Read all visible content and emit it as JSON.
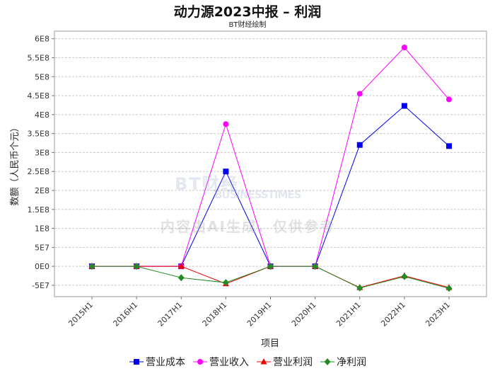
{
  "chart_data": {
    "type": "line",
    "title": "动力源2023中报 – 利润",
    "subtitle": "BT财经绘制",
    "xlabel": "项目",
    "ylabel": "数额（人民币个元）",
    "categories": [
      "2015H1",
      "2016H1",
      "2017H1",
      "2018H1",
      "2019H1",
      "2020H1",
      "2021H1",
      "2022H1",
      "2023H1"
    ],
    "ylim": [
      -80000000,
      620000000
    ],
    "yticks": [
      -50000000,
      0,
      50000000,
      100000000,
      150000000,
      200000000,
      250000000,
      300000000,
      350000000,
      400000000,
      450000000,
      500000000,
      550000000,
      600000000
    ],
    "ytick_labels": [
      "-5E7",
      "0E0",
      "5E7",
      "1E8",
      "1.5E8",
      "2E8",
      "2.5E8",
      "3E8",
      "3.5E8",
      "4E8",
      "4.5E8",
      "5E8",
      "5.5E8",
      "6E8"
    ],
    "grid": true,
    "legend_position": "bottom",
    "series": [
      {
        "name": "营业成本",
        "color": "#0000ee",
        "marker": "square",
        "values": [
          0,
          0,
          0,
          250000000,
          0,
          0,
          320000000,
          423000000,
          317000000
        ]
      },
      {
        "name": "营业收入",
        "color": "#ff00ff",
        "marker": "circle",
        "values": [
          0,
          0,
          0,
          375000000,
          0,
          0,
          455000000,
          577000000,
          440000000
        ]
      },
      {
        "name": "营业利润",
        "color": "#ee0000",
        "marker": "triangle",
        "values": [
          0,
          0,
          0,
          -46000000,
          0,
          0,
          -56000000,
          -25000000,
          -56000000
        ]
      },
      {
        "name": "净利润",
        "color": "#228b22",
        "marker": "diamond",
        "values": [
          0,
          0,
          -30000000,
          -43000000,
          0,
          0,
          -57000000,
          -27000000,
          -58000000
        ]
      }
    ]
  },
  "watermark": {
    "logo": "BT财经",
    "sub": "BUSINESSTIMES",
    "note": "内容由AI生成，仅供参考"
  }
}
